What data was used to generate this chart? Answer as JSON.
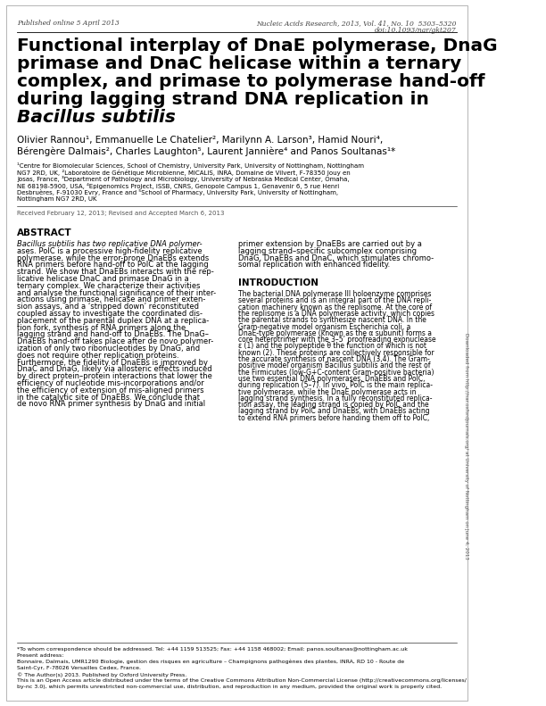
{
  "bg_color": "#ffffff",
  "published_text": "Published online 5 April 2013",
  "journal_text": "Nucleic Acids Research, 2013, Vol. 41, No. 10  5303–5320",
  "doi_text": "doi:10.1093/nar/gkt207",
  "title_line1": "Functional interplay of DnaE polymerase, DnaG",
  "title_line2": "primase and DnaC helicase within a ternary",
  "title_line3": "complex, and primase to polymerase hand-off",
  "title_line4": "during lagging strand DNA replication in",
  "title_italic": "Bacillus subtilis",
  "authors": "Olivier Rannou¹, Emmanuelle Le Chatelier², Marilynn A. Larson³, Hamid Nouri⁴,",
  "authors2": "Bérengère Dalmais², Charles Laughton⁵, Laurent Jannière⁴ and Panos Soultanas¹*",
  "affil1": "¹Centre for Biomolecular Sciences, School of Chemistry, University Park, University of Nottingham, Nottingham",
  "affil2": "NG7 2RD, UK, ²Laboratoire de Génétique Microbienne, MICALIS, INRA, Domaine de Vilvert, F-78350 Jouy en",
  "affil3": "Josas, France, ³Department of Pathology and Microbiology, University of Nebraska Medical Center, Omaha,",
  "affil4": "NE 68198-5900, USA, ⁴Epigenomics Project, iSSB, CNRS, Genopole Campus 1, Genavenir 6, 5 rue Henri",
  "affil5": "Desbruères, F-91030 Evry, France and ⁵School of Pharmacy, University Park, University of Nottingham,",
  "affil6": "Nottingham NG7 2RD, UK",
  "received_text": "Received February 12, 2013; Revised and Accepted March 6, 2013",
  "abstract_header": "ABSTRACT",
  "abstract_col1_lines": [
    "Bacillus subtilis has two replicative DNA polymer-",
    "ases. PolC is a processive high-fidelity replicative",
    "polymerase, while the error-prone DnaEBs extends",
    "RNA primers before hand-off to PolC at the lagging",
    "strand. We show that DnaEBs interacts with the rep-",
    "licative helicase DnaC and primase DnaG in a",
    "ternary complex. We characterize their activities",
    "and analyse the functional significance of their inter-",
    "actions using primase, helicase and primer exten-",
    "sion assays, and a ‘stripped down’ reconstituted",
    "coupled assay to investigate the coordinated dis-",
    "placement of the parental duplex DNA at a replica-",
    "tion fork, synthesis of RNA primers along the",
    "lagging strand and hand-off to DnaEBs. The DnaG–",
    "DnaEBs hand-off takes place after de novo polymer-",
    "ization of only two ribonucleotides by DnaG, and",
    "does not require other replication proteins.",
    "Furthermore, the fidelity of DnaEBs is improved by",
    "DnaC and DnaG, likely via allosteric effects induced",
    "by direct protein–protein interactions that lower the",
    "efficiency of nucleotide mis-incorporations and/or",
    "the efficiency of extension of mis-aligned primers",
    "in the catalytic site of DnaEBs. We conclude that",
    "de novo RNA primer synthesis by DnaG and initial"
  ],
  "abstract_col2_lines": [
    "primer extension by DnaEBs are carried out by a",
    "lagging strand–specific subcomplex comprising",
    "DnaG, DnaEBs and DnaC, which stimulates chromo-",
    "somal replication with enhanced fidelity."
  ],
  "intro_header": "INTRODUCTION",
  "intro_col2_lines": [
    "The bacterial DNA polymerase III holoenzyme comprises",
    "several proteins and is an integral part of the DNA repli-",
    "cation machinery known as the replisome. At the core of",
    "the replisome is a DNA polymerase activity, which copies",
    "the parental strands to synthesize nascent DNA. In the",
    "Gram-negative model organism Escherichia coli, a",
    "DnaE-type polymerase (known as the α subunit) forms a",
    "core heterotrimer with the 3–5’ proofreading exonuclease",
    "ε (1) and the polypeptide θ the function of which is not",
    "known (2). These proteins are collectively responsible for",
    "the accurate synthesis of nascent DNA (3,4). The Gram-",
    "positive model organism Bacillus subtilis and the rest of",
    "the Firmicutes (low-G+C-content Gram-positive bacteria)",
    "use two essential DNA polymerases, DnaEBs and PolC,",
    "during replication (5–7). In vivo, PolC is the main replica-",
    "tive polymerase, while the DnaE polymerase acts in",
    "lagging strand synthesis. In a fully reconstituted replica-",
    "tion assay, the leading strand is copied by PolC and the",
    "lagging strand by PolC and DnaEBs, with DnaEBs acting",
    "to extend RNA primers before handing them off to PolC,"
  ],
  "footnote1": "*To whom correspondence should be addressed. Tel: +44 1159 513525; Fax: +44 1158 468002; Email: panos.soultanas@nottingham.ac.uk",
  "footnote2": "Present address:",
  "footnote3": "Bonnaire, Dalmais, UMR1290 Biologie, gestion des risques en agriculture – Champignons pathogènes des plantes, INRA, RD 10 - Route de",
  "footnote4": "Saint-Cyr, F-78026 Versailles Cedex, France.",
  "footnote5": "© The Author(s) 2013. Published by Oxford University Press.",
  "footnote6": "This is an Open Access article distributed under the terms of the Creative Commons Attribution Non-Commercial License (http://creativecommons.org/licenses/",
  "footnote7": "by-nc 3.0), which permits unrestricted non-commercial use, distribution, and reproduction in any medium, provided the original work is properly cited.",
  "sidebar_text": "Downloaded from http://nar.oxfordjournals.org/ at University of Nottingham on June 4, 2013",
  "text_color": "#000000",
  "gray_color": "#555555"
}
